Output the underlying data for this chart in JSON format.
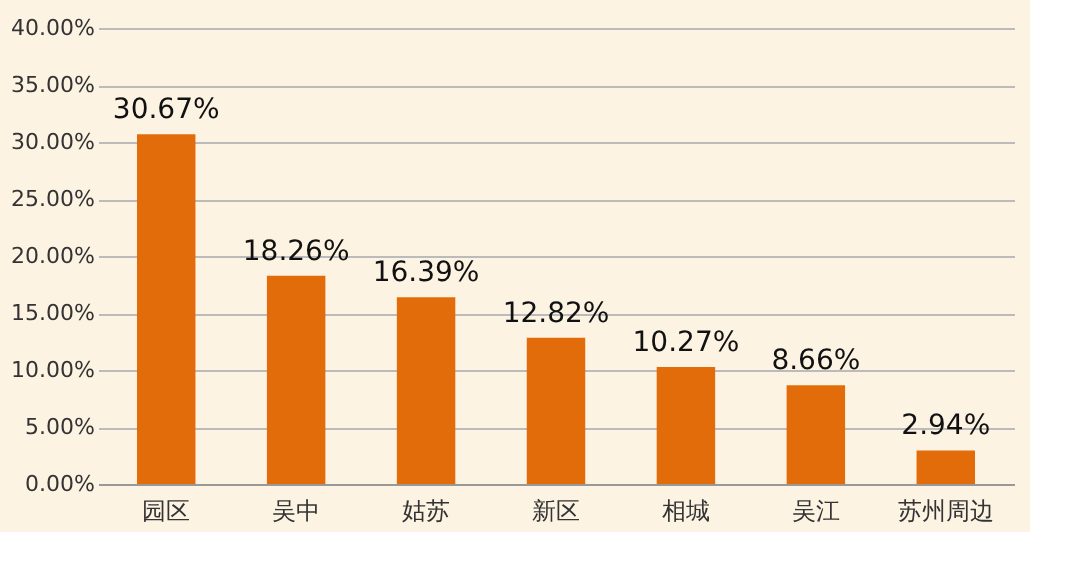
{
  "chart_data": {
    "type": "bar",
    "categories": [
      "园区",
      "吴中",
      "姑苏",
      "新区",
      "相城",
      "吴江",
      "苏州周边"
    ],
    "values": [
      30.67,
      18.26,
      16.39,
      12.82,
      10.27,
      8.66,
      2.94
    ],
    "value_labels": [
      "30.67%",
      "18.26%",
      "16.39%",
      "12.82%",
      "10.27%",
      "8.66%",
      "2.94%"
    ],
    "color": "#e36c0a",
    "ylim": [
      0,
      40
    ],
    "yticks": [
      {
        "value": 0,
        "label": "0.00%"
      },
      {
        "value": 5,
        "label": "5.00%"
      },
      {
        "value": 10,
        "label": "10.00%"
      },
      {
        "value": 15,
        "label": "15.00%"
      },
      {
        "value": 20,
        "label": "20.00%"
      },
      {
        "value": 25,
        "label": "25.00%"
      },
      {
        "value": 30,
        "label": "30.00%"
      },
      {
        "value": 35,
        "label": "35.00%"
      },
      {
        "value": 40,
        "label": "40.00%"
      }
    ],
    "grid": "y"
  }
}
